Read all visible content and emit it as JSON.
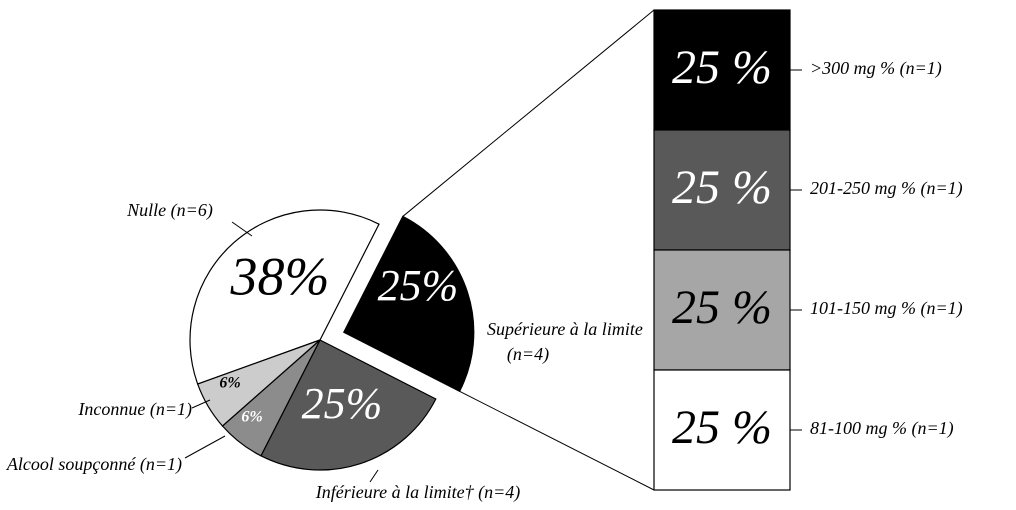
{
  "chart_data": {
    "type": "pie-of-bar",
    "pie": [
      {
        "label": "Nulle",
        "n": "(n=6)",
        "value": 38,
        "value_label": "38%",
        "color": "#ffffff"
      },
      {
        "label": "Supérieure à la limite",
        "n": "(n=4)",
        "value": 25,
        "value_label": "25%",
        "color": "#000000",
        "exploded": true
      },
      {
        "label": "Inférieure à la limite†",
        "n": "(n=4)",
        "value": 25,
        "value_label": "25%",
        "color": "#595959"
      },
      {
        "label": "Alcool soupçonné",
        "n": "(n=1)",
        "value": 6,
        "value_label": "6%",
        "color": "#8c8c8c"
      },
      {
        "label": "Inconnue",
        "n": "(n=1)",
        "value": 6,
        "value_label": "6%",
        "color": "#cccccc"
      }
    ],
    "bar": [
      {
        "label": ">300 mg %",
        "n": "(n=1)",
        "value": 25,
        "value_label": "25 %",
        "color": "#000000"
      },
      {
        "label": "201-250 mg %",
        "n": "(n=1)",
        "value": 25,
        "value_label": "25 %",
        "color": "#595959"
      },
      {
        "label": "101-150 mg %",
        "n": "(n=1)",
        "value": 25,
        "value_label": "25 %",
        "color": "#a6a6a6"
      },
      {
        "label": "81-100 mg %",
        "n": "(n=1)",
        "value": 25,
        "value_label": "25 %",
        "color": "#ffffff"
      }
    ]
  }
}
